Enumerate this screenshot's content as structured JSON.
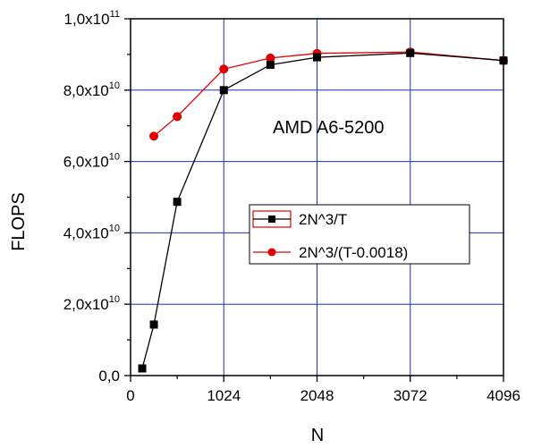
{
  "chart_data": {
    "type": "line",
    "title": "",
    "xlabel": "N",
    "ylabel": "FLOPS",
    "xlim": [
      0,
      4096
    ],
    "ylim": [
      0,
      100000000000
    ],
    "x_ticks": [
      {
        "value": 0,
        "label": "0"
      },
      {
        "value": 1024,
        "label": "1024"
      },
      {
        "value": 2048,
        "label": "2048"
      },
      {
        "value": 3072,
        "label": "3072"
      },
      {
        "value": 4096,
        "label": "4096"
      }
    ],
    "y_ticks": [
      {
        "value": 0,
        "mant": "0,0",
        "exp": ""
      },
      {
        "value": 20000000000,
        "mant": "2,0x10",
        "exp": "10"
      },
      {
        "value": 40000000000,
        "mant": "4,0x10",
        "exp": "10"
      },
      {
        "value": 60000000000,
        "mant": "6,0x10",
        "exp": "10"
      },
      {
        "value": 80000000000,
        "mant": "8,0x10",
        "exp": "10"
      },
      {
        "value": 100000000000,
        "mant": "1,0x10",
        "exp": "11"
      }
    ],
    "grid": true,
    "annotation": "AMD A6-5200",
    "series": [
      {
        "name": "2N^3/T",
        "color": "#000000",
        "marker": "square",
        "x": [
          128,
          256,
          512,
          1024,
          1536,
          2048,
          3072,
          4096
        ],
        "y": [
          2000000000,
          14300000000,
          48700000000,
          80000000000,
          87100000000,
          89200000000,
          90400000000,
          88300000000
        ]
      },
      {
        "name": "2N^3/(T-0.0018)",
        "color": "#e00000",
        "marker": "circle",
        "x": [
          256,
          512,
          1024,
          1536,
          2048,
          3072,
          4096
        ],
        "y": [
          67100000000,
          72600000000,
          85900000000,
          89000000000,
          90300000000,
          90700000000,
          88300000000
        ]
      }
    ]
  }
}
